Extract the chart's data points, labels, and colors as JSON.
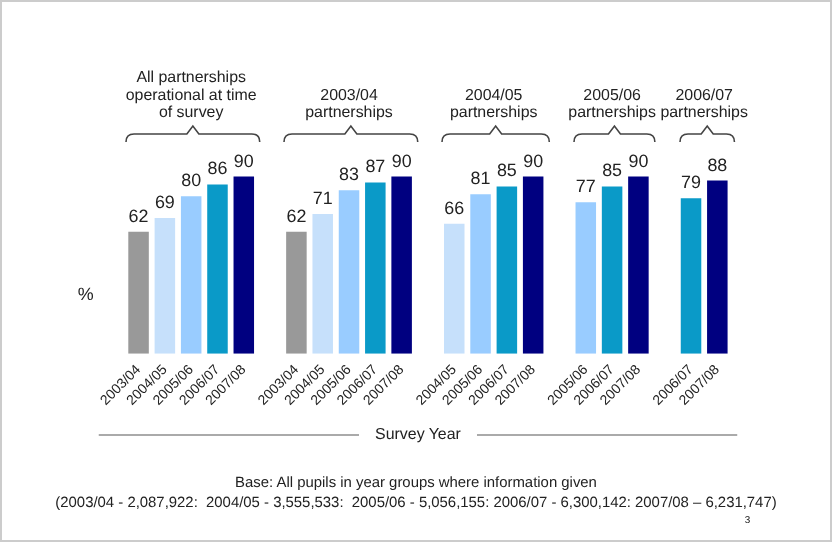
{
  "chart_data": {
    "type": "bar",
    "ylabel": "%",
    "xlabel": "Survey Year",
    "categories": [
      "2003/04",
      "2004/05",
      "2005/06",
      "2006/07",
      "2007/08",
      null,
      "2003/04",
      "2004/05",
      "2005/06",
      "2006/07",
      "2007/08",
      null,
      "2004/05",
      "2005/06",
      "2006/07",
      "2007/08",
      null,
      "2005/06",
      "2006/07",
      "2007/08",
      null,
      "2006/07",
      "2007/08"
    ],
    "values": [
      62,
      69,
      80,
      86,
      90,
      null,
      62,
      71,
      83,
      87,
      90,
      null,
      66,
      81,
      85,
      90,
      null,
      77,
      85,
      90,
      null,
      79,
      88
    ],
    "colors": [
      "#999999",
      "#c6e0fb",
      "#99ccff",
      "#0a9ac8",
      "#000080",
      "#ffffff",
      "#999999",
      "#c6e0fb",
      "#99ccff",
      "#0a9ac8",
      "#000080",
      "#ffffff",
      "#c6e0fb",
      "#99ccff",
      "#0a9ac8",
      "#000080",
      "#ffffff",
      "#99ccff",
      "#0a9ac8",
      "#000080",
      "#ffffff",
      "#0a9ac8",
      "#000080"
    ],
    "data_labels": true,
    "legend": false,
    "grid": false,
    "annotations": [
      "All partnerships operational at time of survey",
      "2003/04 partnerships",
      "2004/05 partnerships",
      "2005/06 partnerships",
      "2006/07 partnerships",
      "Base: All pupils in year groups where information given",
      "(2003/04 - 2,087,922:  2004/05 - 3,555,533:  2005/06 - 5,056,155: 2006/07 - 6,300,142: 2007/08 – 6,231,747)",
      "3"
    ]
  }
}
